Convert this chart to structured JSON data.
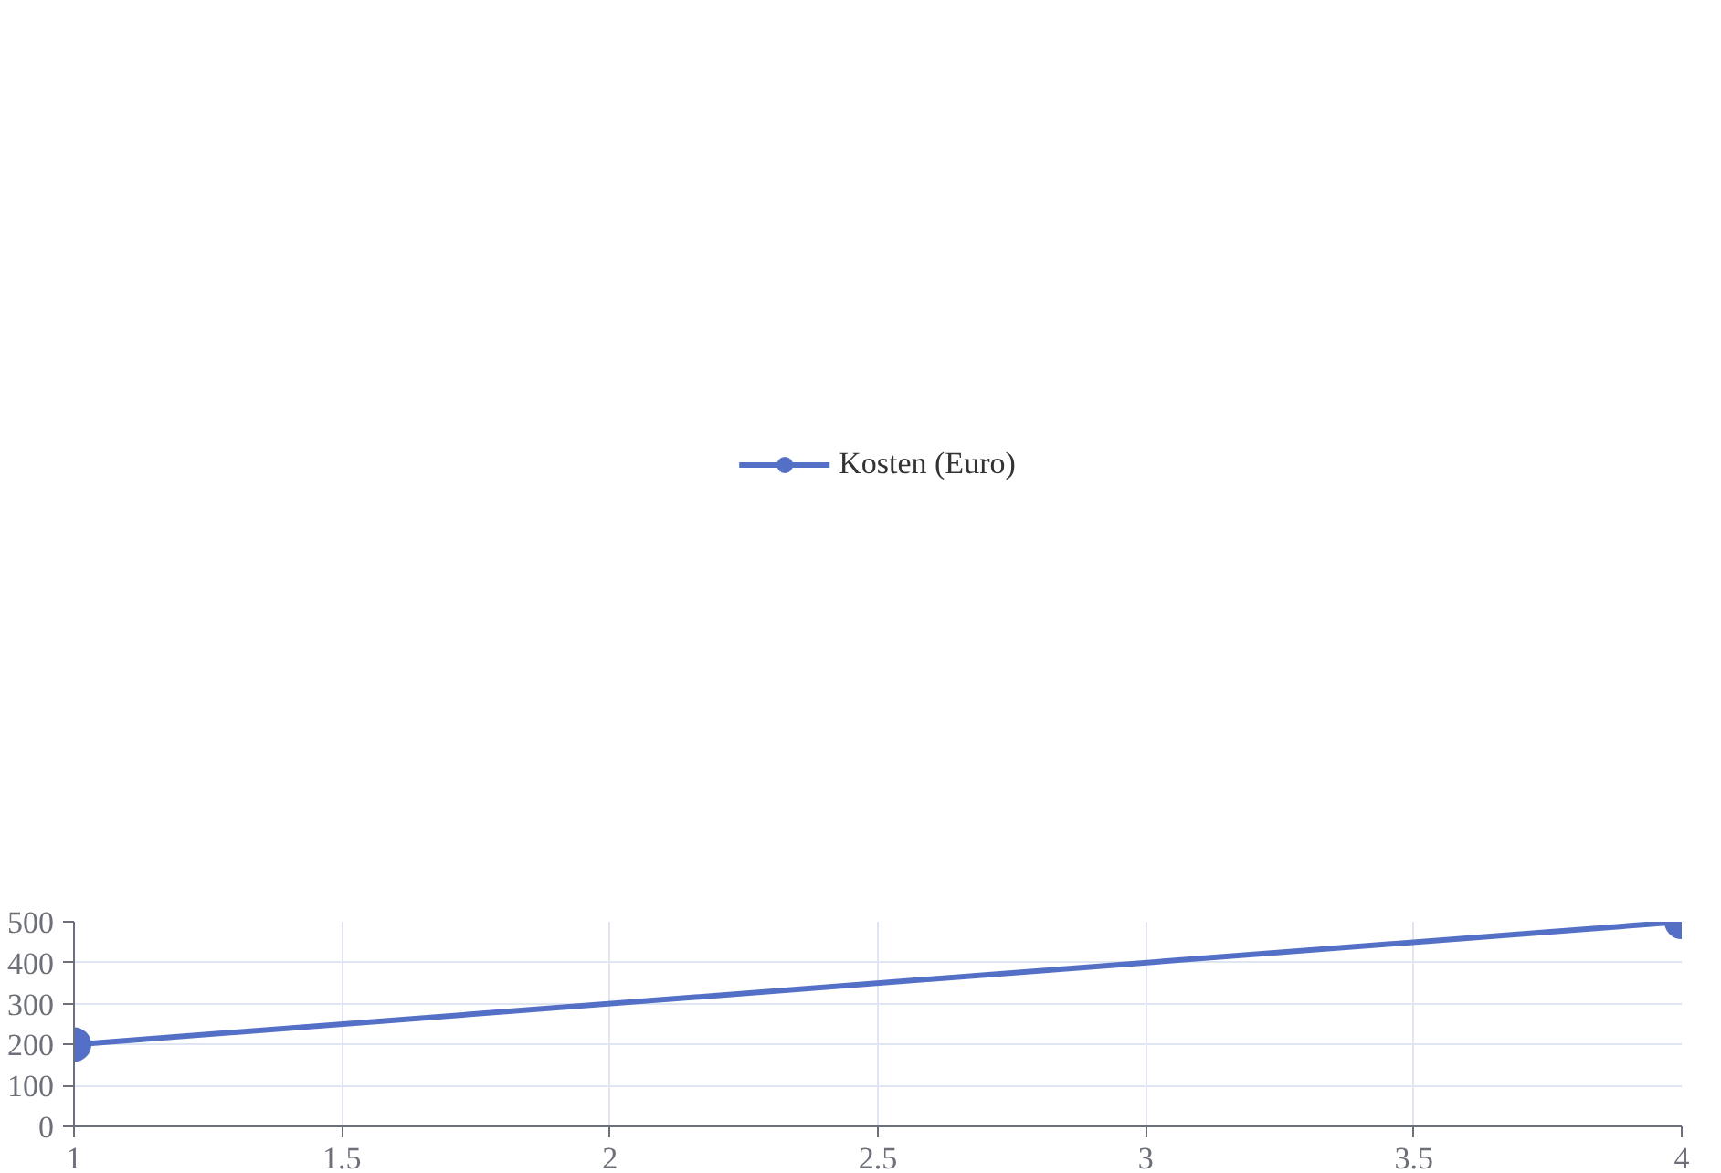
{
  "chart_data": {
    "type": "line",
    "x": [
      1,
      4
    ],
    "series": [
      {
        "name": "Kosten (Euro)",
        "color": "#5470c6",
        "values": [
          200,
          500
        ]
      }
    ],
    "xlim": [
      1,
      4
    ],
    "xticks": [
      1,
      1.5,
      2,
      2.5,
      3,
      3.5,
      4
    ],
    "ylim": [
      0,
      500
    ],
    "yticks": [
      0,
      100,
      200,
      300,
      400,
      500
    ],
    "grid": true,
    "legend": "top",
    "marker": "circle",
    "line_style": "solid"
  }
}
